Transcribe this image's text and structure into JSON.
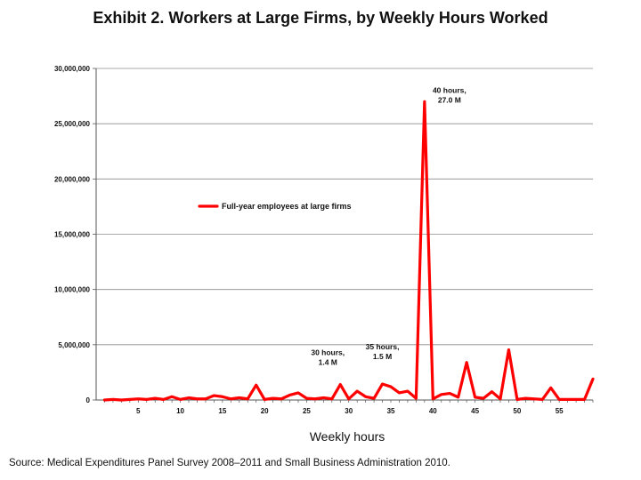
{
  "chart_data": {
    "type": "line",
    "title": "Exhibit 2. Workers at Large Firms, by Weekly Hours Worked",
    "xlabel": "Weekly hours",
    "ylabel": "",
    "ylim": [
      0,
      30000000
    ],
    "xlim": [
      0,
      59
    ],
    "yticks": [
      {
        "value": 0,
        "label": "0"
      },
      {
        "value": 5000000,
        "label": "5,000,000"
      },
      {
        "value": 10000000,
        "label": "10,000,000"
      },
      {
        "value": 15000000,
        "label": "15,000,000"
      },
      {
        "value": 20000000,
        "label": "20,000,000"
      },
      {
        "value": 25000000,
        "label": "25,000,000"
      },
      {
        "value": 30000000,
        "label": "30,000,000"
      }
    ],
    "xticks": [
      {
        "value": 5,
        "label": "5"
      },
      {
        "value": 10,
        "label": "10"
      },
      {
        "value": 15,
        "label": "15"
      },
      {
        "value": 20,
        "label": "20"
      },
      {
        "value": 25,
        "label": "25"
      },
      {
        "value": 30,
        "label": "30"
      },
      {
        "value": 35,
        "label": "35"
      },
      {
        "value": 40,
        "label": "40"
      },
      {
        "value": 45,
        "label": "45"
      },
      {
        "value": 50,
        "label": "50"
      },
      {
        "value": 55,
        "label": "55"
      }
    ],
    "grid": "horizontal",
    "legend_position": "upper-left",
    "series": [
      {
        "name": "Full-year employees at large firms",
        "color": "#ff0000",
        "x": [
          1,
          2,
          3,
          4,
          5,
          6,
          7,
          8,
          9,
          10,
          11,
          12,
          13,
          14,
          15,
          16,
          17,
          18,
          19,
          20,
          21,
          22,
          23,
          24,
          25,
          26,
          27,
          28,
          29,
          30,
          31,
          32,
          33,
          34,
          35,
          36,
          37,
          38,
          39,
          40,
          41,
          42,
          43,
          44,
          45,
          46,
          47,
          48,
          49,
          50,
          51,
          52,
          53,
          54,
          55,
          56,
          57,
          58,
          59
        ],
        "y": [
          0,
          50000,
          0,
          50000,
          100000,
          50000,
          150000,
          50000,
          300000,
          50000,
          200000,
          100000,
          100000,
          400000,
          300000,
          100000,
          200000,
          100000,
          1350000,
          50000,
          150000,
          100000,
          450000,
          650000,
          150000,
          100000,
          200000,
          100000,
          1400000,
          100000,
          800000,
          300000,
          150000,
          1450000,
          1200000,
          650000,
          800000,
          150000,
          27000000,
          100000,
          500000,
          600000,
          250000,
          3400000,
          250000,
          150000,
          750000,
          100000,
          4550000,
          50000,
          150000,
          100000,
          50000,
          1100000,
          50000,
          50000,
          50000,
          50000,
          1900000
        ]
      }
    ],
    "annotations": [
      {
        "x": 29,
        "y": 1400000,
        "lines": [
          "30 hours,",
          "1.4 M"
        ]
      },
      {
        "x": 34,
        "y": 1450000,
        "lines": [
          "35 hours,",
          "1.5 M"
        ]
      },
      {
        "x": 39,
        "y": 27000000,
        "lines": [
          "40 hours,",
          "27.0 M"
        ]
      }
    ]
  },
  "source": "Source: Medical Expenditures Panel Survey 2008–2011 and Small Business Administration 2010."
}
